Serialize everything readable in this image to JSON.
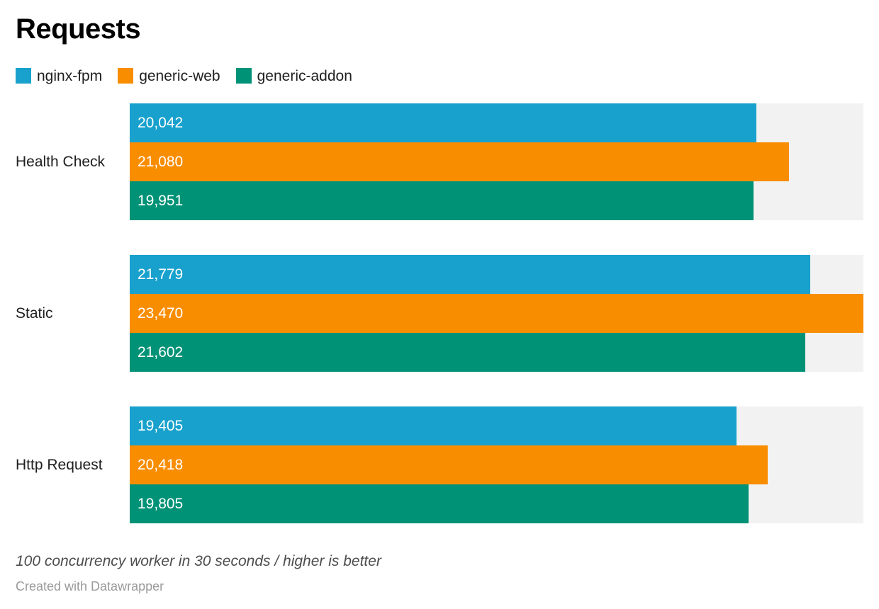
{
  "chart_data": {
    "type": "bar",
    "orientation": "horizontal",
    "title": "Requests",
    "categories": [
      "Health Check",
      "Static",
      "Http Request"
    ],
    "series": [
      {
        "name": "nginx-fpm",
        "color": "#18a1cd",
        "values": [
          20042,
          21779,
          19405
        ]
      },
      {
        "name": "generic-web",
        "color": "#f98d00",
        "values": [
          21080,
          23470,
          20418
        ]
      },
      {
        "name": "generic-addon",
        "color": "#009276",
        "values": [
          19951,
          21602,
          19805
        ]
      }
    ],
    "xlim": [
      0,
      23470
    ],
    "value_labels": [
      [
        "20,042",
        "21,080",
        "19,951"
      ],
      [
        "21,779",
        "23,470",
        "21,602"
      ],
      [
        "19,405",
        "20,418",
        "19,805"
      ]
    ],
    "legend_position": "top",
    "grid": false,
    "bar_background_track": true,
    "note": "100 concurrency worker in 30 seconds / higher is better",
    "attribution": "Created with Datawrapper"
  },
  "colors": {
    "track": "#f2f2f2",
    "value_text": "#ffffff",
    "title_text": "#000000",
    "label_text": "#202020",
    "note_text": "#4d4d4d",
    "attribution_text": "#9a9a9a"
  }
}
